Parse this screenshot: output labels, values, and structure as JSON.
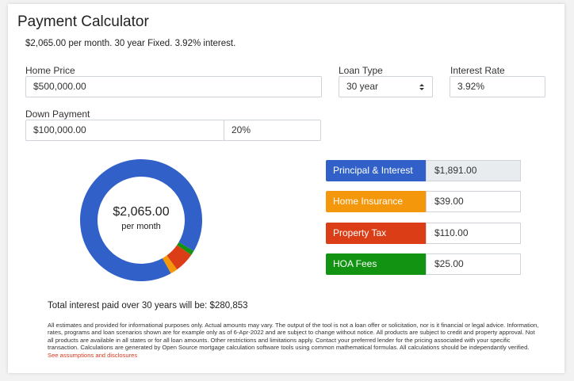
{
  "header": {
    "title": "Payment Calculator",
    "summary": "$2,065.00 per month. 30 year Fixed. 3.92% interest."
  },
  "form": {
    "home_price": {
      "label": "Home Price",
      "value": "$500,000.00"
    },
    "loan_type": {
      "label": "Loan Type",
      "value": "30 year"
    },
    "interest_rate": {
      "label": "Interest Rate",
      "value": "3.92%"
    },
    "down_payment": {
      "label": "Down Payment",
      "value": "$100,000.00",
      "percent": "20%"
    }
  },
  "chart_data": {
    "type": "pie",
    "center_value": "$2,065.00",
    "center_label": "per month",
    "categories": [
      "Principal & Interest",
      "Home Insurance",
      "Property Tax",
      "HOA Fees"
    ],
    "values": [
      1891,
      39,
      110,
      25
    ],
    "value_labels": [
      "$1,891.00",
      "$39.00",
      "$110.00",
      "$25.00"
    ],
    "colors": [
      "#3060c8",
      "#f5970a",
      "#db3e17",
      "#129412"
    ]
  },
  "total_interest": "Total interest paid over 30 years will be: $280,853",
  "disclaimer": "All estimates and provided for informational purposes only. Actual amounts may vary. The output of the tool is not a loan offer or solicitation, nor is it financial or legal advice. Information, rates, programs and loan scenarios shown are for example only as of 6-Apr-2022 and are subject to change without notice. All products are subject to credit and property approval. Not all products are available in all states or for all loan amounts. Other restrictions and limitations apply. Contact your preferred lender for the pricing associated with your specific transaction. Calculations are generated by Open Source mortgage calculation software tools using common mathematical formulas. All calculations should be independantly verified.",
  "disclaimer_link": "See assumptions and disclosures"
}
